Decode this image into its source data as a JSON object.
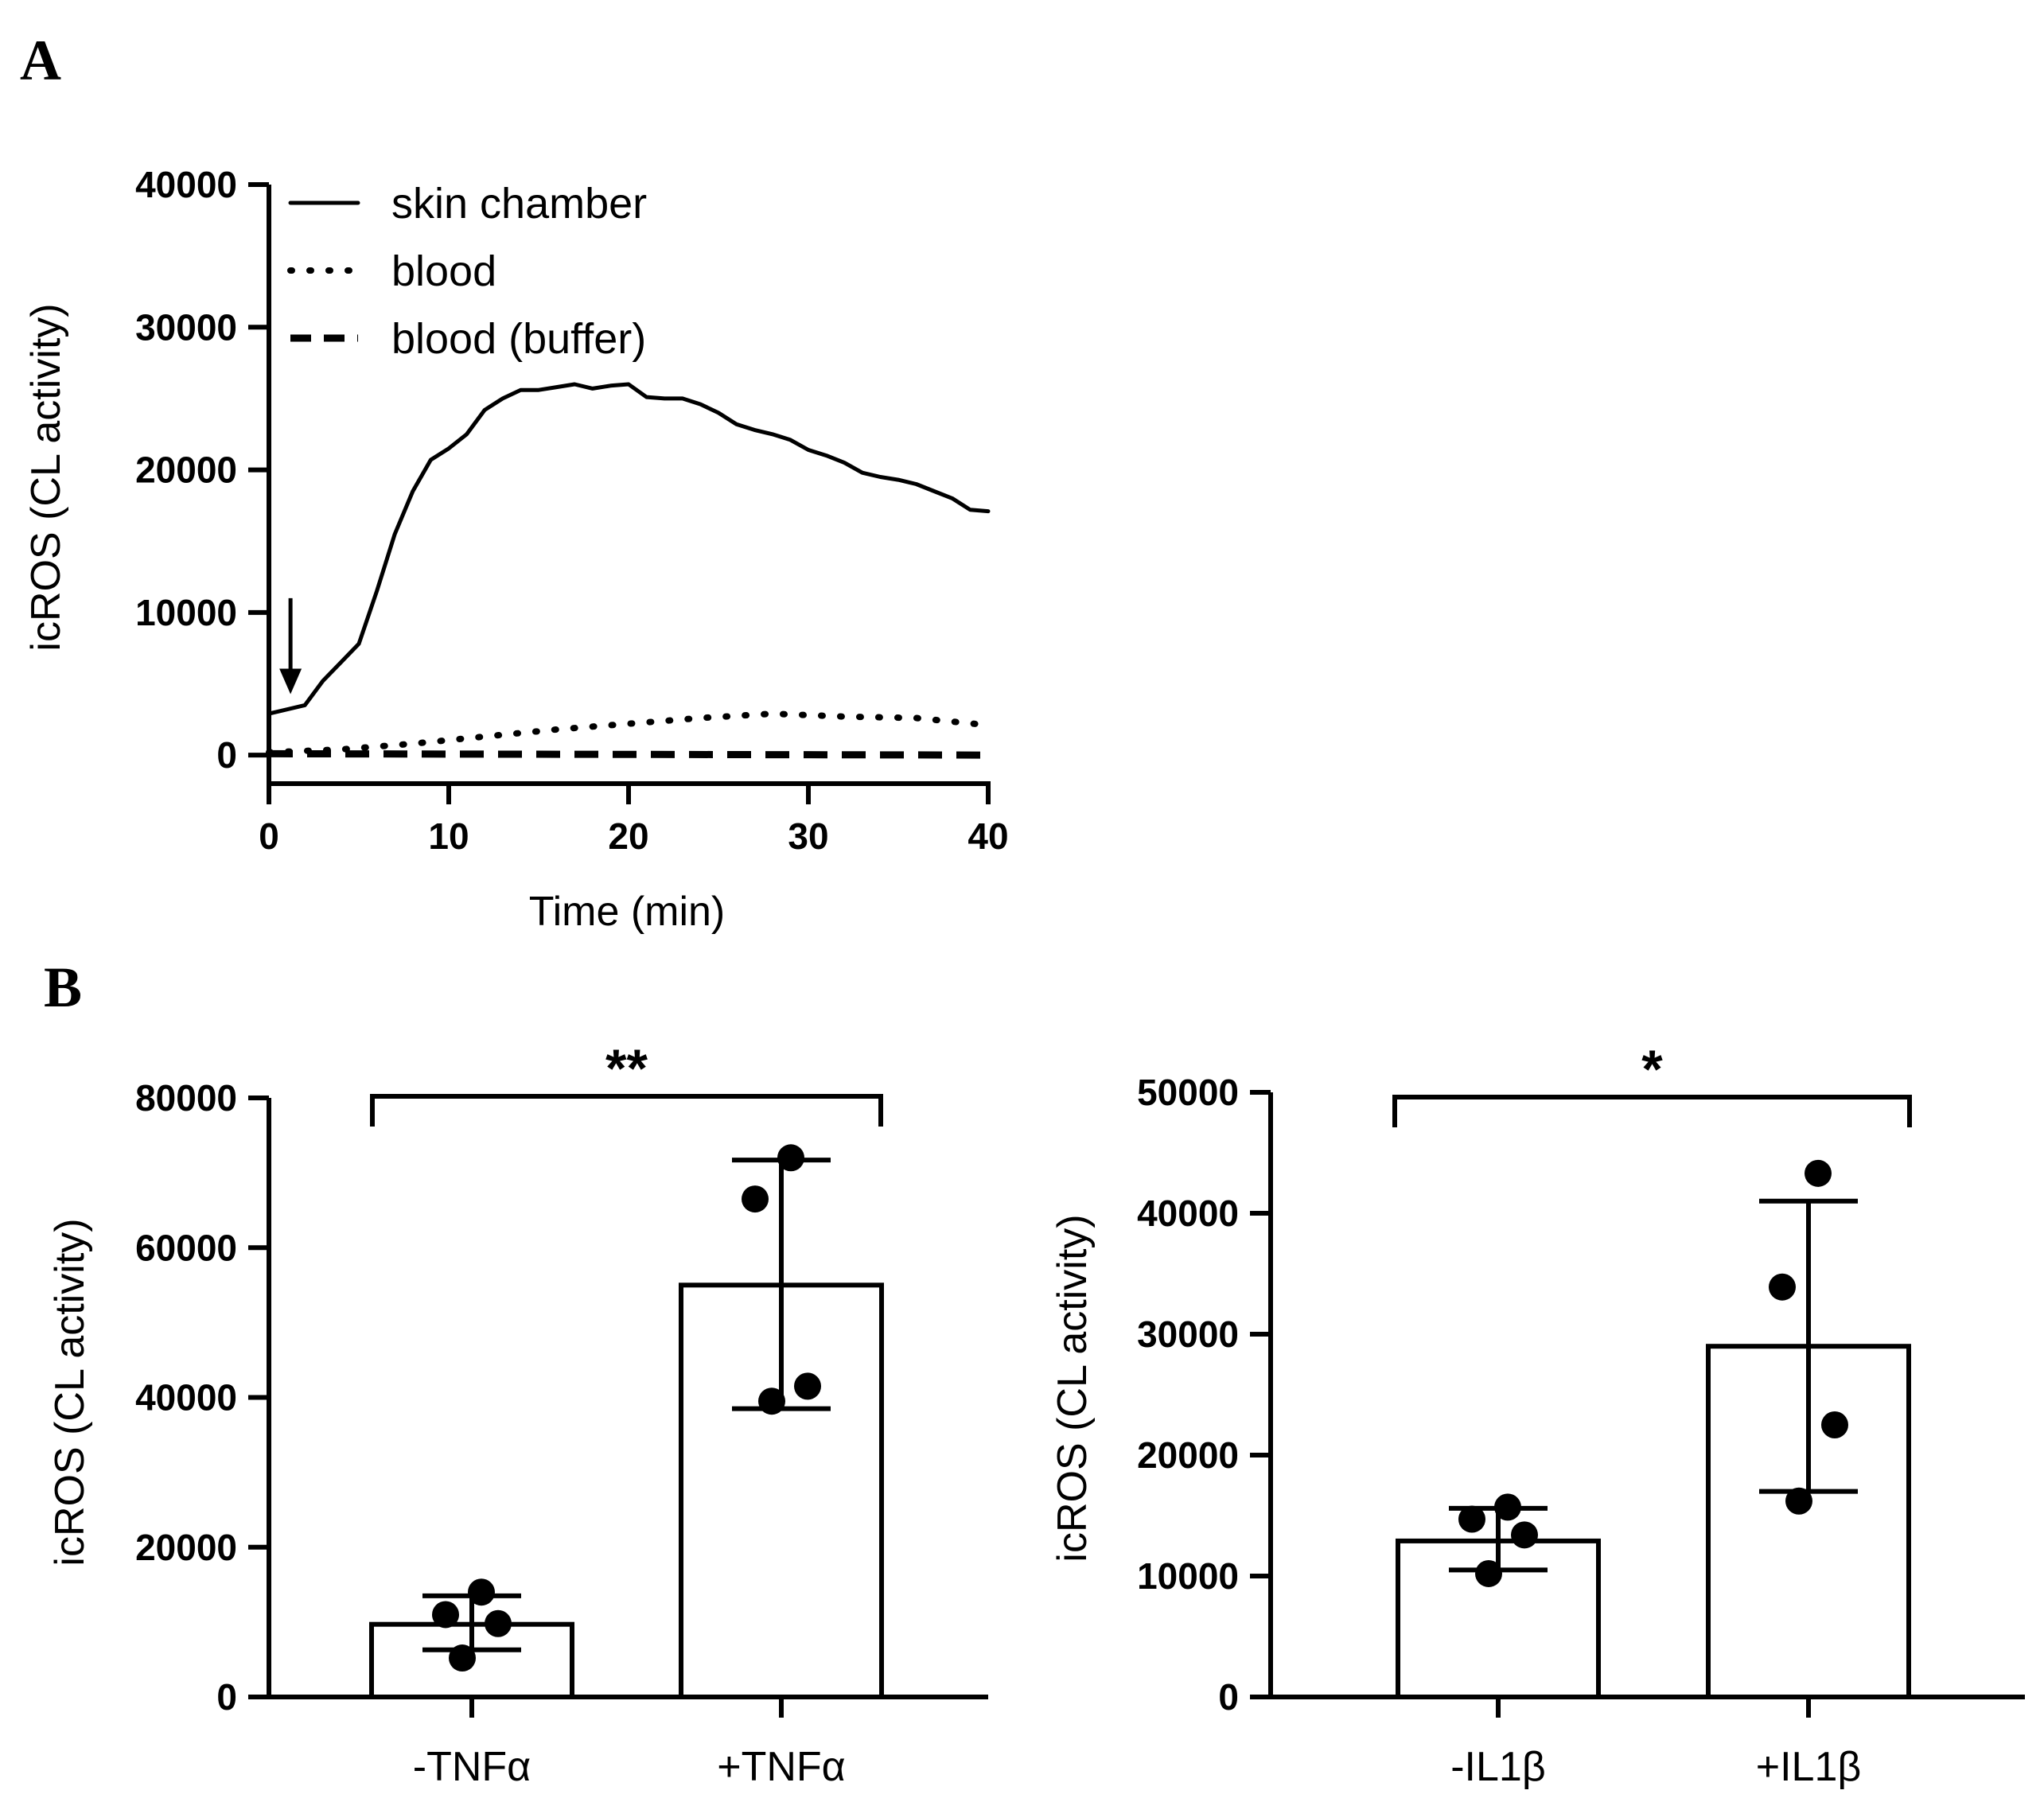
{
  "panels": {
    "a": {
      "letter": "A"
    },
    "b": {
      "letter": "B"
    }
  },
  "chart_data": [
    {
      "type": "line",
      "xlabel": "Time (min)",
      "ylabel": "icROS (CL activity)",
      "xlim": [
        0,
        40
      ],
      "ylim": [
        -2000,
        40000
      ],
      "xticks": [
        "0",
        "10",
        "20",
        "30",
        "40"
      ],
      "yticks": [
        "0",
        "10000",
        "20000",
        "30000",
        "40000"
      ],
      "legend_position": "top-left",
      "annotation": {
        "type": "arrow-down",
        "x": 1.2,
        "y_from": 11000,
        "y_to": 4500
      },
      "series": [
        {
          "name": "skin chamber",
          "style": "solid",
          "x": [
            0,
            2,
            3,
            4,
            5,
            6,
            7,
            8,
            9,
            10,
            11,
            12,
            13,
            14,
            15,
            16,
            17,
            18,
            19,
            20,
            21,
            22,
            23,
            24,
            25,
            26,
            27,
            28,
            29,
            30,
            31,
            32,
            33,
            34,
            35,
            36,
            37,
            38,
            39,
            40
          ],
          "y": [
            2900,
            3500,
            5200,
            6500,
            7800,
            11500,
            15500,
            18500,
            20700,
            21500,
            22500,
            24200,
            25000,
            25600,
            25600,
            25800,
            26000,
            25700,
            25900,
            26000,
            25100,
            25000,
            25000,
            24600,
            24000,
            23200,
            22800,
            22500,
            22100,
            21400,
            21000,
            20500,
            19800,
            19500,
            19300,
            19000,
            18500,
            18000,
            17200,
            17100
          ]
        },
        {
          "name": "blood",
          "style": "dotted",
          "x": [
            0,
            4,
            8,
            12,
            16,
            20,
            24,
            28,
            32,
            36,
            40
          ],
          "y": [
            200,
            400,
            800,
            1300,
            1800,
            2200,
            2600,
            2900,
            2700,
            2600,
            2100
          ]
        },
        {
          "name": "blood (buffer)",
          "style": "dashed",
          "x": [
            0,
            40
          ],
          "y": [
            100,
            0
          ]
        }
      ]
    },
    {
      "type": "bar",
      "ylabel": "icROS (CL activity)",
      "ylim": [
        0,
        80000
      ],
      "yticks": [
        "0",
        "20000",
        "40000",
        "60000",
        "80000"
      ],
      "categories": [
        "-TNFα",
        "+TNFα"
      ],
      "values": [
        9700,
        55000
      ],
      "error": [
        [
          6300,
          13500
        ],
        [
          38500,
          71700
        ]
      ],
      "points": [
        [
          14000,
          11000,
          9800,
          5200
        ],
        [
          72000,
          66500,
          41500,
          39500
        ]
      ],
      "significance": "**"
    },
    {
      "type": "bar",
      "ylabel": "icROS (CL activity)",
      "ylim": [
        0,
        50000
      ],
      "yticks": [
        "0",
        "10000",
        "20000",
        "30000",
        "40000",
        "50000"
      ],
      "categories": [
        "-IL1β",
        "+IL1β"
      ],
      "values": [
        12900,
        29000
      ],
      "error": [
        [
          10500,
          15600
        ],
        [
          17000,
          41000
        ]
      ],
      "points": [
        [
          15700,
          14700,
          13400,
          10200
        ],
        [
          43300,
          33900,
          22500,
          16200
        ]
      ],
      "significance": "*"
    }
  ]
}
